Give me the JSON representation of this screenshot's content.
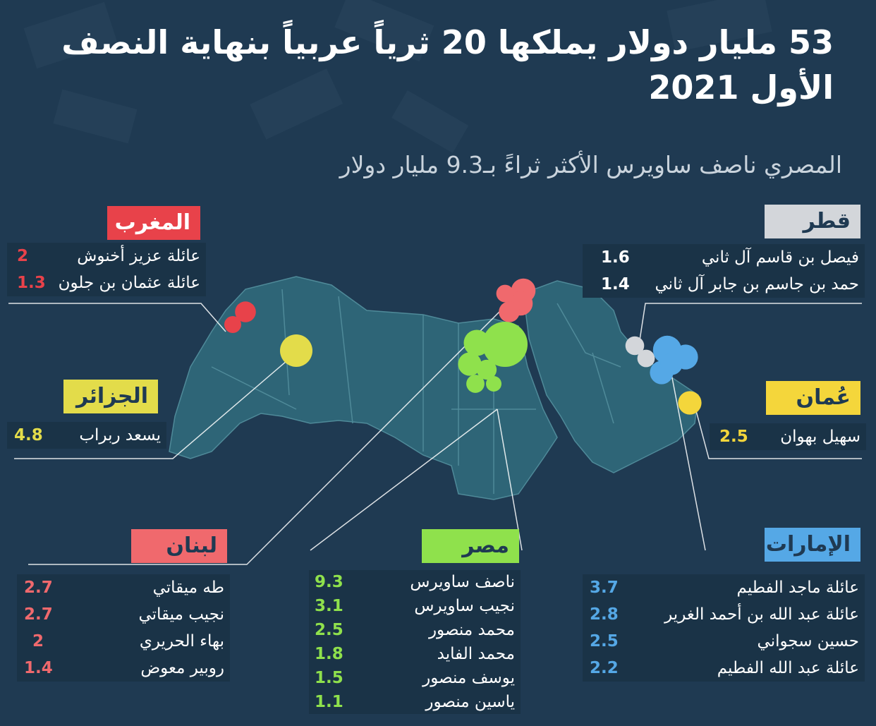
{
  "title": "53 مليار دولار يملكها 20 ثرياً عربياً بنهاية النصف الأول 2021",
  "subtitle": "المصري ناصف ساويرس الأكثر ثراءً بـ9.3 مليار دولار",
  "colors": {
    "background": "#1f3a52",
    "map": "#2e6577",
    "morocco": "#e8424a",
    "algeria": "#e3dc4a",
    "lebanon": "#f0696d",
    "egypt": "#8fe14c",
    "qatar": "#d3d6da",
    "uae": "#55a8e6",
    "oman": "#f4d63b"
  },
  "countries": {
    "morocco": {
      "name": "المغرب",
      "people": [
        {
          "name": "عائلة عزيز أخنوش",
          "value": "2"
        },
        {
          "name": "عائلة عثمان بن جلون",
          "value": "1.3"
        }
      ]
    },
    "algeria": {
      "name": "الجزائر",
      "people": [
        {
          "name": "يسعد ربراب",
          "value": "4.8"
        }
      ]
    },
    "lebanon": {
      "name": "لبنان",
      "people": [
        {
          "name": "طه ميقاتي",
          "value": "2.7"
        },
        {
          "name": "نجيب ميقاتي",
          "value": "2.7"
        },
        {
          "name": "بهاء الحريري",
          "value": "2"
        },
        {
          "name": "روبير معوض",
          "value": "1.4"
        }
      ]
    },
    "egypt": {
      "name": "مصر",
      "people": [
        {
          "name": "ناصف ساويرس",
          "value": "9.3"
        },
        {
          "name": "نجيب ساويرس",
          "value": "3.1"
        },
        {
          "name": "محمد منصور",
          "value": "2.5"
        },
        {
          "name": "محمد الفايد",
          "value": "1.8"
        },
        {
          "name": "يوسف منصور",
          "value": "1.5"
        },
        {
          "name": "ياسين منصور",
          "value": "1.1"
        }
      ]
    },
    "qatar": {
      "name": "قطر",
      "people": [
        {
          "name": "فيصل بن قاسم آل ثاني",
          "value": "1.6"
        },
        {
          "name": "حمد بن جاسم بن جابر آل ثاني",
          "value": "1.4"
        }
      ]
    },
    "uae": {
      "name": "الإمارات",
      "people": [
        {
          "name": "عائلة ماجد الفطيم",
          "value": "3.7"
        },
        {
          "name": "عائلة عبد الله بن أحمد الغرير",
          "value": "2.8"
        },
        {
          "name": "حسين سجواني",
          "value": "2.5"
        },
        {
          "name": "عائلة عبد الله الفطيم",
          "value": "2.2"
        }
      ]
    },
    "oman": {
      "name": "عُمان",
      "people": [
        {
          "name": "سهيل بهوان",
          "value": "2.5"
        }
      ]
    }
  }
}
